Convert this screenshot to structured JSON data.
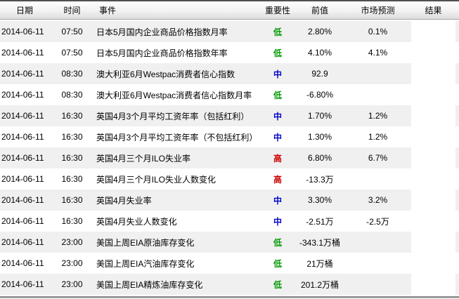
{
  "table": {
    "headers": {
      "date": "日期",
      "time": "时间",
      "event": "事件",
      "importance": "重要性",
      "previous": "前值",
      "forecast": "市场预测",
      "result": "结果"
    },
    "rows": [
      {
        "date": "2014-06-11",
        "time": "07:50",
        "event": "日本5月国内企业商品价格指数月率",
        "importance": "低",
        "importance_level": "low",
        "previous": "2.80%",
        "forecast": "0.1%",
        "result": ""
      },
      {
        "date": "2014-06-11",
        "time": "07:50",
        "event": "日本5月国内企业商品价格指数年率",
        "importance": "低",
        "importance_level": "low",
        "previous": "4.10%",
        "forecast": "4.1%",
        "result": ""
      },
      {
        "date": "2014-06-11",
        "time": "08:30",
        "event": "澳大利亚6月Westpac消费者信心指数",
        "importance": "中",
        "importance_level": "mid",
        "previous": "92.9",
        "forecast": "",
        "result": ""
      },
      {
        "date": "2014-06-11",
        "time": "08:30",
        "event": "澳大利亚6月Westpac消费者信心指数月率",
        "importance": "低",
        "importance_level": "low",
        "previous": "-6.80%",
        "forecast": "",
        "result": ""
      },
      {
        "date": "2014-06-11",
        "time": "16:30",
        "event": "英国4月3个月平均工资年率（包括红利）",
        "importance": "中",
        "importance_level": "mid",
        "previous": "1.70%",
        "forecast": "1.2%",
        "result": ""
      },
      {
        "date": "2014-06-11",
        "time": "16:30",
        "event": "英国4月3个月平均工资年率（不包括红利）",
        "importance": "中",
        "importance_level": "mid",
        "previous": "1.30%",
        "forecast": "1.2%",
        "result": ""
      },
      {
        "date": "2014-06-11",
        "time": "16:30",
        "event": "英国4月三个月ILO失业率",
        "importance": "高",
        "importance_level": "high",
        "previous": "6.80%",
        "forecast": "6.7%",
        "result": ""
      },
      {
        "date": "2014-06-11",
        "time": "16:30",
        "event": "英国4月三个月ILO失业人数变化",
        "importance": "高",
        "importance_level": "high",
        "previous": "-13.3万",
        "forecast": "",
        "result": ""
      },
      {
        "date": "2014-06-11",
        "time": "16:30",
        "event": "英国4月失业率",
        "importance": "中",
        "importance_level": "mid",
        "previous": "3.30%",
        "forecast": "3.2%",
        "result": ""
      },
      {
        "date": "2014-06-11",
        "time": "16:30",
        "event": "英国4月失业人数变化",
        "importance": "中",
        "importance_level": "mid",
        "previous": "-2.51万",
        "forecast": "-2.5万",
        "result": ""
      },
      {
        "date": "2014-06-11",
        "time": "23:00",
        "event": "美国上周EIA原油库存变化",
        "importance": "低",
        "importance_level": "low",
        "previous": "-343.1万桶",
        "forecast": "",
        "result": ""
      },
      {
        "date": "2014-06-11",
        "time": "23:00",
        "event": "美国上周EIA汽油库存变化",
        "importance": "低",
        "importance_level": "low",
        "previous": "21万桶",
        "forecast": "",
        "result": ""
      },
      {
        "date": "2014-06-11",
        "time": "23:00",
        "event": "美国上周EIA精炼油库存变化",
        "importance": "低",
        "importance_level": "low",
        "previous": "201.2万桶",
        "forecast": "",
        "result": ""
      }
    ]
  },
  "colors": {
    "importance_low": "#009900",
    "importance_mid": "#0000cc",
    "importance_high": "#cc0000",
    "row_stripe": "#f0f0f0",
    "header_border_top": "#4f4f4f"
  }
}
